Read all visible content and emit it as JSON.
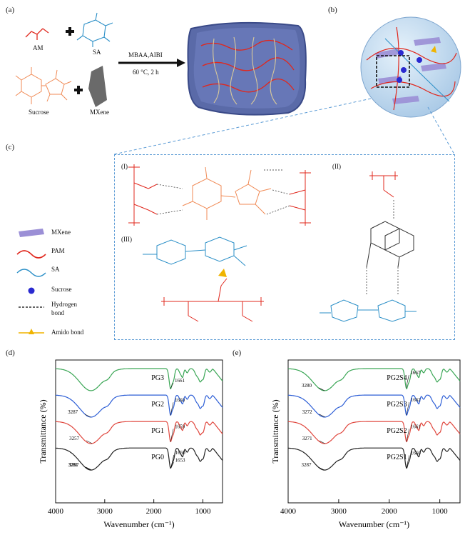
{
  "panels": {
    "a": "(a)",
    "b": "(b)",
    "c": "(c)",
    "d": "(d)",
    "e": "(e)"
  },
  "scheme": {
    "reactants": [
      "AM",
      "SA",
      "Sucrose",
      "MXene"
    ],
    "condition_top": "MBAA,AIBI",
    "condition_bottom": "60 °C, 2 h"
  },
  "mechanism": {
    "labels": [
      "(I)",
      "(II)",
      "(III)"
    ]
  },
  "legend": {
    "items": [
      {
        "label": "MXene",
        "color": "#9b8fd6",
        "icon": "mxene-flake-icon"
      },
      {
        "label": "PAM",
        "color": "#e0281e",
        "icon": "red-wave-line-icon"
      },
      {
        "label": "SA",
        "color": "#2b8fc7",
        "icon": "blue-wave-line-icon"
      },
      {
        "label": "Sucrose",
        "color": "#2a2ad0",
        "icon": "blue-dot-icon"
      },
      {
        "label": "Hydrogen\nbond",
        "color": "#333333",
        "icon": "dashed-line-icon"
      },
      {
        "label": "Amido bond",
        "color": "#f0b400",
        "icon": "triangle-line-icon"
      }
    ]
  },
  "chart_data": [
    {
      "type": "line",
      "panel": "(d)",
      "xlabel": "Wavenumber (cm⁻¹)",
      "ylabel": "Transmittance (%)",
      "xlim": [
        4000,
        600
      ],
      "xticks": [
        4000,
        3000,
        2000,
        1000
      ],
      "series": [
        {
          "name": "PG3",
          "color": "#3aa655",
          "peaks": [
            {
              "x": 1661,
              "label": "1661"
            }
          ]
        },
        {
          "name": "PG2",
          "color": "#2e5fd6",
          "peaks": [
            {
              "x": 3287,
              "label": "3287"
            },
            {
              "x": 1660,
              "label": "1660"
            }
          ]
        },
        {
          "name": "PG1",
          "color": "#e0473e",
          "peaks": [
            {
              "x": 3257,
              "label": "3257"
            },
            {
              "x": 1659,
              "label": "1659"
            }
          ]
        },
        {
          "name": "PG0",
          "color": "#222222",
          "peaks": [
            {
              "x": 3267,
              "label": "3267"
            },
            {
              "x": 3281,
              "label": "3281"
            },
            {
              "x": 1653,
              "label": "1653"
            },
            {
              "x": 1650,
              "label": "1650"
            }
          ]
        }
      ]
    },
    {
      "type": "line",
      "panel": "(e)",
      "xlabel": "Wavenumber (cm⁻¹)",
      "ylabel": "Transmittance (%)",
      "xlim": [
        4000,
        600
      ],
      "xticks": [
        4000,
        3000,
        2000,
        1000
      ],
      "series": [
        {
          "name": "PG2S4",
          "color": "#3aa655",
          "peaks": [
            {
              "x": 3280,
              "label": "3280"
            },
            {
              "x": 1667,
              "label": "1667"
            }
          ]
        },
        {
          "name": "PG2S3",
          "color": "#2e5fd6",
          "peaks": [
            {
              "x": 3272,
              "label": "3272"
            },
            {
              "x": 1662,
              "label": "1662"
            }
          ]
        },
        {
          "name": "PG2S2",
          "color": "#e0473e",
          "peaks": [
            {
              "x": 3271,
              "label": "3271"
            },
            {
              "x": 1661,
              "label": "1661"
            }
          ]
        },
        {
          "name": "PG2S1",
          "color": "#222222",
          "peaks": [
            {
              "x": 3287,
              "label": "3287"
            },
            {
              "x": 1660,
              "label": "1660"
            }
          ]
        }
      ]
    }
  ]
}
